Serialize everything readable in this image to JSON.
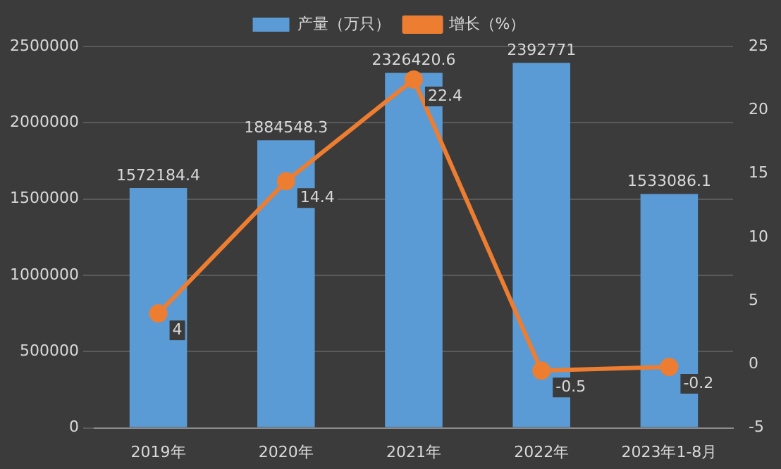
{
  "chart_data": {
    "type": "bar",
    "categories": [
      "2019年",
      "2020年",
      "2021年",
      "2022年",
      "2023年1-8月"
    ],
    "series": [
      {
        "name": "产量（万只）",
        "color": "#5b9bd5",
        "values": [
          1572184.4,
          1884548.3,
          2326420.6,
          2392771,
          1533086.1
        ]
      },
      {
        "name": "增长（%）",
        "type": "line",
        "axis": "y2",
        "color": "#ed7d31",
        "values": [
          4,
          14.4,
          22.4,
          -0.5,
          -0.2
        ]
      }
    ],
    "ylim": [
      0,
      2500000
    ],
    "yticks": [
      0,
      500000,
      1000000,
      1500000,
      2000000,
      2500000
    ],
    "y2lim": [
      -5,
      25
    ],
    "y2ticks": [
      -5,
      0,
      5,
      10,
      15,
      20,
      25
    ],
    "grid": "y",
    "legend": "top",
    "marker": "circle",
    "line_style": "solid",
    "data_labels": true
  }
}
